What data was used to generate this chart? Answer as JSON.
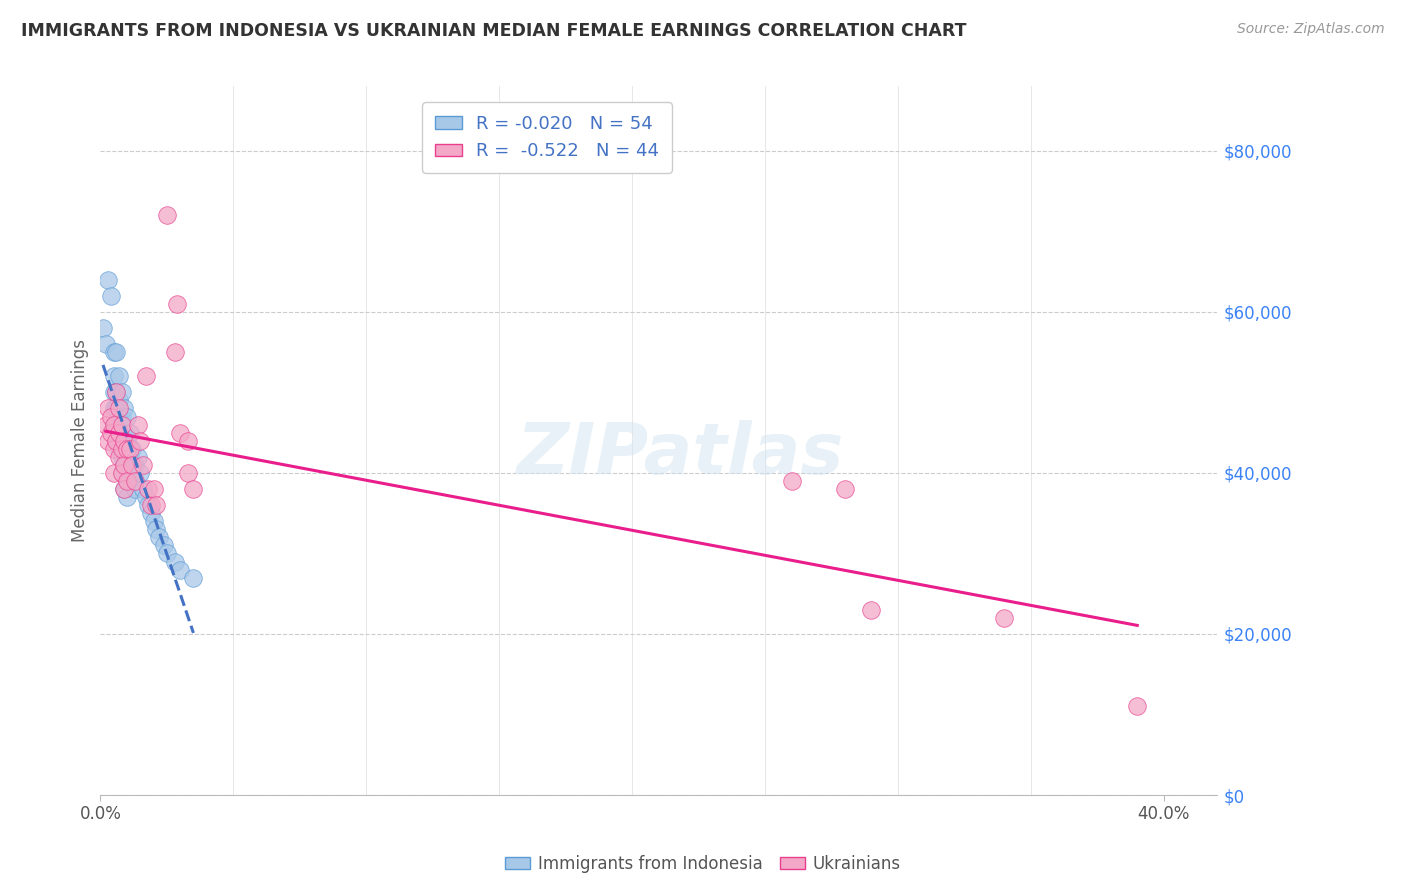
{
  "title": "IMMIGRANTS FROM INDONESIA VS UKRAINIAN MEDIAN FEMALE EARNINGS CORRELATION CHART",
  "source": "Source: ZipAtlas.com",
  "ylabel": "Median Female Earnings",
  "xlim": [
    0.0,
    0.42
  ],
  "ylim": [
    0,
    88000
  ],
  "ylabel_vals": [
    0,
    20000,
    40000,
    60000,
    80000
  ],
  "ylabel_ticks": [
    "$0",
    "$20,000",
    "$40,000",
    "$60,000",
    "$80,000"
  ],
  "watermark": "ZIPatlas",
  "indonesia_dots": [
    [
      0.001,
      58000
    ],
    [
      0.002,
      56000
    ],
    [
      0.003,
      64000
    ],
    [
      0.004,
      62000
    ],
    [
      0.005,
      55000
    ],
    [
      0.005,
      52000
    ],
    [
      0.005,
      50000
    ],
    [
      0.005,
      48000
    ],
    [
      0.005,
      46000
    ],
    [
      0.006,
      55000
    ],
    [
      0.006,
      50000
    ],
    [
      0.006,
      48000
    ],
    [
      0.006,
      46000
    ],
    [
      0.006,
      44000
    ],
    [
      0.007,
      52000
    ],
    [
      0.007,
      49000
    ],
    [
      0.007,
      47000
    ],
    [
      0.007,
      45000
    ],
    [
      0.007,
      43000
    ],
    [
      0.008,
      50000
    ],
    [
      0.008,
      47000
    ],
    [
      0.008,
      44000
    ],
    [
      0.008,
      42000
    ],
    [
      0.008,
      40000
    ],
    [
      0.009,
      48000
    ],
    [
      0.009,
      45000
    ],
    [
      0.009,
      43000
    ],
    [
      0.009,
      41000
    ],
    [
      0.009,
      38000
    ],
    [
      0.01,
      47000
    ],
    [
      0.01,
      44000
    ],
    [
      0.01,
      42000
    ],
    [
      0.01,
      40000
    ],
    [
      0.01,
      37000
    ],
    [
      0.011,
      45000
    ],
    [
      0.011,
      42000
    ],
    [
      0.012,
      43000
    ],
    [
      0.012,
      40000
    ],
    [
      0.013,
      41000
    ],
    [
      0.013,
      38000
    ],
    [
      0.014,
      42000
    ],
    [
      0.015,
      40000
    ],
    [
      0.016,
      38000
    ],
    [
      0.017,
      37000
    ],
    [
      0.018,
      36000
    ],
    [
      0.019,
      35000
    ],
    [
      0.02,
      34000
    ],
    [
      0.021,
      33000
    ],
    [
      0.022,
      32000
    ],
    [
      0.024,
      31000
    ],
    [
      0.025,
      30000
    ],
    [
      0.028,
      29000
    ],
    [
      0.03,
      28000
    ],
    [
      0.035,
      27000
    ]
  ],
  "ukraine_dots": [
    [
      0.002,
      46000
    ],
    [
      0.003,
      48000
    ],
    [
      0.003,
      44000
    ],
    [
      0.004,
      47000
    ],
    [
      0.004,
      45000
    ],
    [
      0.005,
      46000
    ],
    [
      0.005,
      43000
    ],
    [
      0.005,
      40000
    ],
    [
      0.006,
      50000
    ],
    [
      0.006,
      44000
    ],
    [
      0.007,
      48000
    ],
    [
      0.007,
      45000
    ],
    [
      0.007,
      42000
    ],
    [
      0.008,
      46000
    ],
    [
      0.008,
      43000
    ],
    [
      0.008,
      40000
    ],
    [
      0.009,
      44000
    ],
    [
      0.009,
      41000
    ],
    [
      0.009,
      38000
    ],
    [
      0.01,
      43000
    ],
    [
      0.01,
      39000
    ],
    [
      0.011,
      43000
    ],
    [
      0.012,
      41000
    ],
    [
      0.013,
      39000
    ],
    [
      0.014,
      46000
    ],
    [
      0.015,
      44000
    ],
    [
      0.016,
      41000
    ],
    [
      0.017,
      52000
    ],
    [
      0.018,
      38000
    ],
    [
      0.019,
      36000
    ],
    [
      0.02,
      38000
    ],
    [
      0.021,
      36000
    ],
    [
      0.025,
      72000
    ],
    [
      0.028,
      55000
    ],
    [
      0.029,
      61000
    ],
    [
      0.03,
      45000
    ],
    [
      0.033,
      44000
    ],
    [
      0.033,
      40000
    ],
    [
      0.035,
      38000
    ],
    [
      0.26,
      39000
    ],
    [
      0.28,
      38000
    ],
    [
      0.29,
      23000
    ],
    [
      0.34,
      22000
    ],
    [
      0.39,
      11000
    ]
  ],
  "line_color_indonesia": "#4472c4",
  "line_color_ukraine": "#e91e8c",
  "dot_color_indonesia": "#a8c8e8",
  "dot_color_ukraine": "#f4a8c8",
  "dot_edge_indonesia": "#5b9bd5",
  "dot_edge_ukraine": "#e83e8c",
  "bg_color": "#ffffff",
  "grid_color": "#cccccc",
  "title_color": "#333333",
  "axis_label_color": "#666666",
  "ytick_color": "#3b82f6",
  "source_color": "#999999",
  "legend_text_color": "#4472c4"
}
